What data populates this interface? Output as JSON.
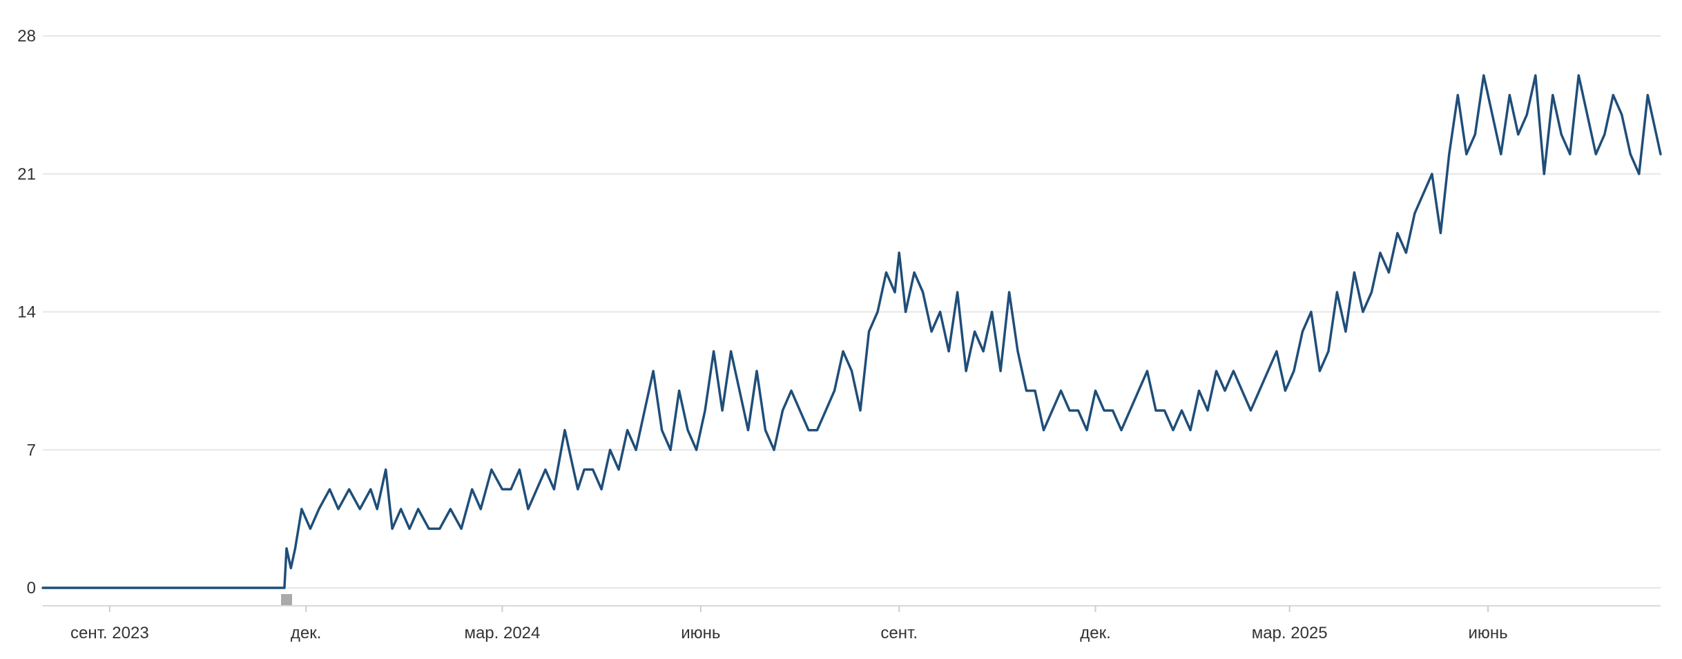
{
  "chart_data": {
    "type": "line",
    "title": "",
    "xlabel": "",
    "ylabel": "",
    "ylim": [
      0,
      28
    ],
    "y_ticks": [
      0,
      7,
      14,
      21,
      28
    ],
    "x_range": [
      "2023-08-01",
      "2025-08-20"
    ],
    "x_ticks": [
      {
        "date": "2023-09-01",
        "label": "сент. 2023"
      },
      {
        "date": "2023-12-01",
        "label": "дек."
      },
      {
        "date": "2024-03-01",
        "label": "мар. 2024"
      },
      {
        "date": "2024-06-01",
        "label": "июнь"
      },
      {
        "date": "2024-09-01",
        "label": "сент."
      },
      {
        "date": "2024-12-01",
        "label": "дек."
      },
      {
        "date": "2025-03-01",
        "label": "мар. 2025"
      },
      {
        "date": "2025-06-01",
        "label": "июнь"
      }
    ],
    "grid": true,
    "series_color": "#1f4e79",
    "grid_color": "#e6e6e6",
    "marker_color": "#aaaaaa",
    "annotation_marker_date": "2023-11-22",
    "series": [
      {
        "x": [
          "2023-08-01",
          "2023-11-21",
          "2023-11-22",
          "2023-11-24",
          "2023-11-26",
          "2023-11-29",
          "2023-12-03",
          "2023-12-07",
          "2023-12-12",
          "2023-12-16",
          "2023-12-21",
          "2023-12-26",
          "2023-12-31",
          "2024-01-03",
          "2024-01-07",
          "2024-01-10",
          "2024-01-14",
          "2024-01-18",
          "2024-01-22",
          "2024-01-27",
          "2024-02-01",
          "2024-02-06",
          "2024-02-11",
          "2024-02-16",
          "2024-02-20",
          "2024-02-25",
          "2024-03-01",
          "2024-03-05",
          "2024-03-09",
          "2024-03-13",
          "2024-03-17",
          "2024-03-21",
          "2024-03-25",
          "2024-03-30",
          "2024-04-05",
          "2024-04-08",
          "2024-04-12",
          "2024-04-16",
          "2024-04-20",
          "2024-04-24",
          "2024-04-28",
          "2024-05-02",
          "2024-05-06",
          "2024-05-10",
          "2024-05-14",
          "2024-05-18",
          "2024-05-22",
          "2024-05-26",
          "2024-05-30",
          "2024-06-03",
          "2024-06-07",
          "2024-06-11",
          "2024-06-15",
          "2024-06-19",
          "2024-06-23",
          "2024-06-27",
          "2024-07-01",
          "2024-07-05",
          "2024-07-09",
          "2024-07-13",
          "2024-07-17",
          "2024-07-21",
          "2024-07-25",
          "2024-07-29",
          "2024-08-02",
          "2024-08-06",
          "2024-08-10",
          "2024-08-14",
          "2024-08-18",
          "2024-08-22",
          "2024-08-26",
          "2024-08-30",
          "2024-09-01",
          "2024-09-04",
          "2024-09-08",
          "2024-09-12",
          "2024-09-16",
          "2024-09-20",
          "2024-09-24",
          "2024-09-28",
          "2024-10-02",
          "2024-10-06",
          "2024-10-10",
          "2024-10-14",
          "2024-10-18",
          "2024-10-22",
          "2024-10-26",
          "2024-10-30",
          "2024-11-03",
          "2024-11-07",
          "2024-11-11",
          "2024-11-15",
          "2024-11-19",
          "2024-11-23",
          "2024-11-27",
          "2024-12-01",
          "2024-12-05",
          "2024-12-09",
          "2024-12-13",
          "2024-12-17",
          "2024-12-21",
          "2024-12-25",
          "2024-12-29",
          "2025-01-02",
          "2025-01-06",
          "2025-01-10",
          "2025-01-14",
          "2025-01-18",
          "2025-01-22",
          "2025-01-26",
          "2025-01-30",
          "2025-02-03",
          "2025-02-07",
          "2025-02-11",
          "2025-02-15",
          "2025-02-19",
          "2025-02-23",
          "2025-02-27",
          "2025-03-03",
          "2025-03-07",
          "2025-03-11",
          "2025-03-15",
          "2025-03-19",
          "2025-03-23",
          "2025-03-27",
          "2025-03-31",
          "2025-04-04",
          "2025-04-08",
          "2025-04-12",
          "2025-04-16",
          "2025-04-20",
          "2025-04-24",
          "2025-04-28",
          "2025-05-02",
          "2025-05-06",
          "2025-05-10",
          "2025-05-14",
          "2025-05-18",
          "2025-05-22",
          "2025-05-26",
          "2025-05-30",
          "2025-06-03",
          "2025-06-07",
          "2025-06-11",
          "2025-06-15",
          "2025-06-19",
          "2025-06-23",
          "2025-06-27",
          "2025-07-01",
          "2025-07-05",
          "2025-07-09",
          "2025-07-13",
          "2025-07-17",
          "2025-07-21",
          "2025-07-25",
          "2025-07-29",
          "2025-08-02",
          "2025-08-06",
          "2025-08-10",
          "2025-08-14",
          "2025-08-18",
          "2025-08-20"
        ],
        "y": [
          0,
          0,
          2,
          1,
          2,
          4,
          3,
          4,
          5,
          4,
          5,
          4,
          5,
          4,
          6,
          3,
          4,
          3,
          4,
          3,
          3,
          4,
          3,
          5,
          4,
          6,
          5,
          5,
          6,
          4,
          5,
          6,
          5,
          8,
          5,
          6,
          6,
          5,
          7,
          6,
          8,
          7,
          9,
          11,
          8,
          7,
          10,
          8,
          7,
          9,
          12,
          9,
          12,
          10,
          8,
          11,
          8,
          7,
          9,
          10,
          9,
          8,
          8,
          9,
          10,
          12,
          11,
          9,
          13,
          14,
          16,
          15,
          17,
          14,
          16,
          15,
          13,
          14,
          12,
          15,
          11,
          13,
          12,
          14,
          11,
          15,
          12,
          10,
          10,
          8,
          9,
          10,
          9,
          9,
          8,
          10,
          9,
          9,
          8,
          9,
          10,
          11,
          9,
          9,
          8,
          9,
          8,
          10,
          9,
          11,
          10,
          11,
          10,
          9,
          10,
          11,
          12,
          10,
          11,
          13,
          14,
          11,
          12,
          15,
          13,
          16,
          14,
          15,
          17,
          16,
          18,
          17,
          19,
          20,
          21,
          18,
          22,
          25,
          22,
          23,
          26,
          24,
          22,
          25,
          23,
          24,
          26,
          21,
          25,
          23,
          22,
          26,
          24,
          22,
          23,
          25,
          24,
          22,
          21,
          25,
          23,
          22
        ]
      }
    ]
  }
}
